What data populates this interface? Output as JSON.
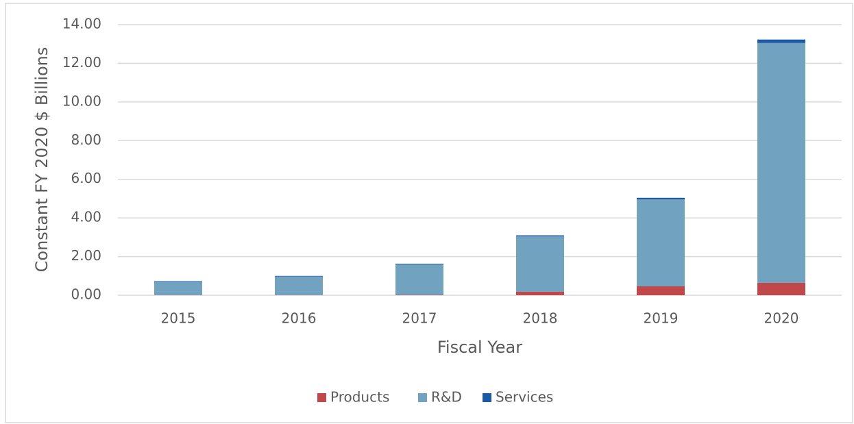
{
  "chart_data": {
    "type": "stacked_bar",
    "x_label": "Fiscal Year",
    "y_label": "Constant FY 2020 $ Billions",
    "categories": [
      "2015",
      "2016",
      "2017",
      "2018",
      "2019",
      "2020"
    ],
    "series": [
      {
        "name": "Products",
        "color": "#c0474a",
        "values": [
          0.01,
          0.01,
          0.02,
          0.18,
          0.46,
          0.64
        ]
      },
      {
        "name": "R&D",
        "color": "#71a3c1",
        "values": [
          0.69,
          0.96,
          1.57,
          2.87,
          4.5,
          12.41
        ]
      },
      {
        "name": "Services",
        "color": "#1a5aa5",
        "values": [
          0.03,
          0.03,
          0.04,
          0.05,
          0.08,
          0.18
        ]
      }
    ],
    "ylim": [
      0,
      14
    ],
    "yticks": [
      {
        "value": 0,
        "label": "0.00"
      },
      {
        "value": 2,
        "label": "2.00"
      },
      {
        "value": 4,
        "label": "4.00"
      },
      {
        "value": 6,
        "label": "6.00"
      },
      {
        "value": 8,
        "label": "8.00"
      },
      {
        "value": 10,
        "label": "10.00"
      },
      {
        "value": 12,
        "label": "12.00"
      },
      {
        "value": 14,
        "label": "14.00"
      }
    ],
    "grid": true,
    "legend": "bottom"
  }
}
